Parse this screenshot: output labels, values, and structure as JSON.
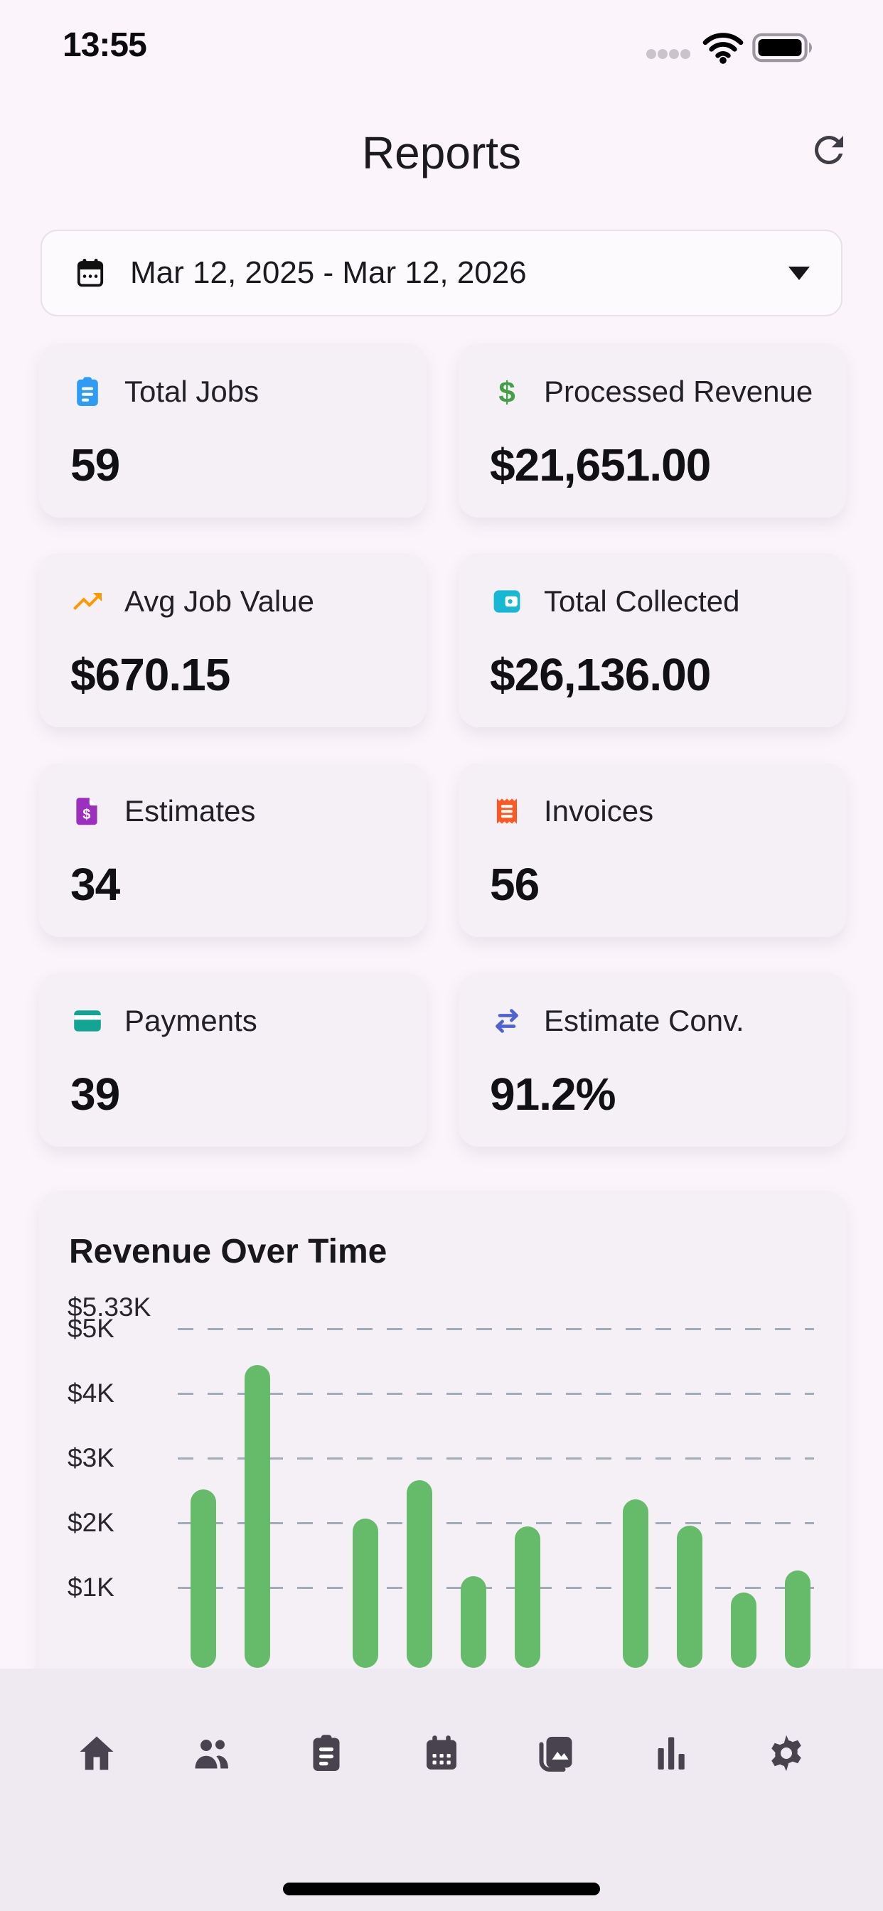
{
  "colors": {
    "page_bg": "#fbf5fb",
    "card_bg": "#f5eff6",
    "selector_bg": "#fdfafd",
    "selector_border": "#e7e1e8",
    "tab_bar_bg": "#efeaf1",
    "tab_icon": "#49434f",
    "bar_green": "#66bb6a",
    "gridline": "#8796a4",
    "text_primary": "#17171c"
  },
  "status_bar": {
    "time": "13:55",
    "cellular_icon": "cellular-dots-icon",
    "wifi_icon": "wifi-icon",
    "battery_icon": "battery-icon"
  },
  "header": {
    "title": "Reports",
    "refresh_icon": "refresh-icon"
  },
  "date_range_picker": {
    "value": "Mar 12, 2025 - Mar 12, 2026",
    "icon": "calendar-icon",
    "caret_icon": "chevron-down-icon"
  },
  "stat_cards": [
    {
      "id": "total-jobs",
      "label": "Total Jobs",
      "value": "59",
      "icon": "clipboard-icon",
      "icon_color": "#2e9cf4"
    },
    {
      "id": "processed-revenue",
      "label": "Processed Revenue",
      "value": "$21,651.00",
      "icon": "dollar-icon",
      "icon_color": "#43a047"
    },
    {
      "id": "avg-job-value",
      "label": "Avg Job Value",
      "value": "$670.15",
      "icon": "trending-up-icon",
      "icon_color": "#ff9800"
    },
    {
      "id": "total-collected",
      "label": "Total Collected",
      "value": "$26,136.00",
      "icon": "wallet-icon",
      "icon_color": "#17b8d4"
    },
    {
      "id": "estimates",
      "label": "Estimates",
      "value": "34",
      "icon": "file-dollar-icon",
      "icon_color": "#9c2fbe"
    },
    {
      "id": "invoices",
      "label": "Invoices",
      "value": "56",
      "icon": "receipt-icon",
      "icon_color": "#ff5722"
    },
    {
      "id": "payments",
      "label": "Payments",
      "value": "39",
      "icon": "credit-card-icon",
      "icon_color": "#12a594"
    },
    {
      "id": "estimate-conv",
      "label": "Estimate Conv.",
      "value": "91.2%",
      "icon": "swap-arrows-icon",
      "icon_color": "#4f63d0"
    }
  ],
  "chart_data": {
    "type": "bar",
    "title": "Revenue Over Time",
    "unit": "USD",
    "values": [
      2520,
      4440,
      0,
      2070,
      2660,
      1180,
      1940,
      0,
      2360,
      1960,
      920,
      1260
    ],
    "x_tick_labels_visible": false,
    "ylim": [
      0,
      5330
    ],
    "y_ticks": [
      {
        "label": "$5.33K",
        "value": 5330,
        "gridline": false
      },
      {
        "label": "$5K",
        "value": 5000,
        "gridline": true
      },
      {
        "label": "$4K",
        "value": 4000,
        "gridline": true
      },
      {
        "label": "$3K",
        "value": 3000,
        "gridline": true
      },
      {
        "label": "$2K",
        "value": 2000,
        "gridline": true
      },
      {
        "label": "$1K",
        "value": 1000,
        "gridline": true
      }
    ],
    "gridline_style": "dashed",
    "bar_color": "#66bb6a",
    "legend": null
  },
  "tab_bar": {
    "items": [
      {
        "id": "home",
        "icon": "home-icon"
      },
      {
        "id": "clients",
        "icon": "users-icon"
      },
      {
        "id": "jobs",
        "icon": "clipboard-icon"
      },
      {
        "id": "calendar",
        "icon": "calendar-filled-icon"
      },
      {
        "id": "photos",
        "icon": "photos-icon"
      },
      {
        "id": "reports",
        "icon": "bar-chart-icon"
      },
      {
        "id": "settings",
        "icon": "gear-icon"
      }
    ]
  }
}
